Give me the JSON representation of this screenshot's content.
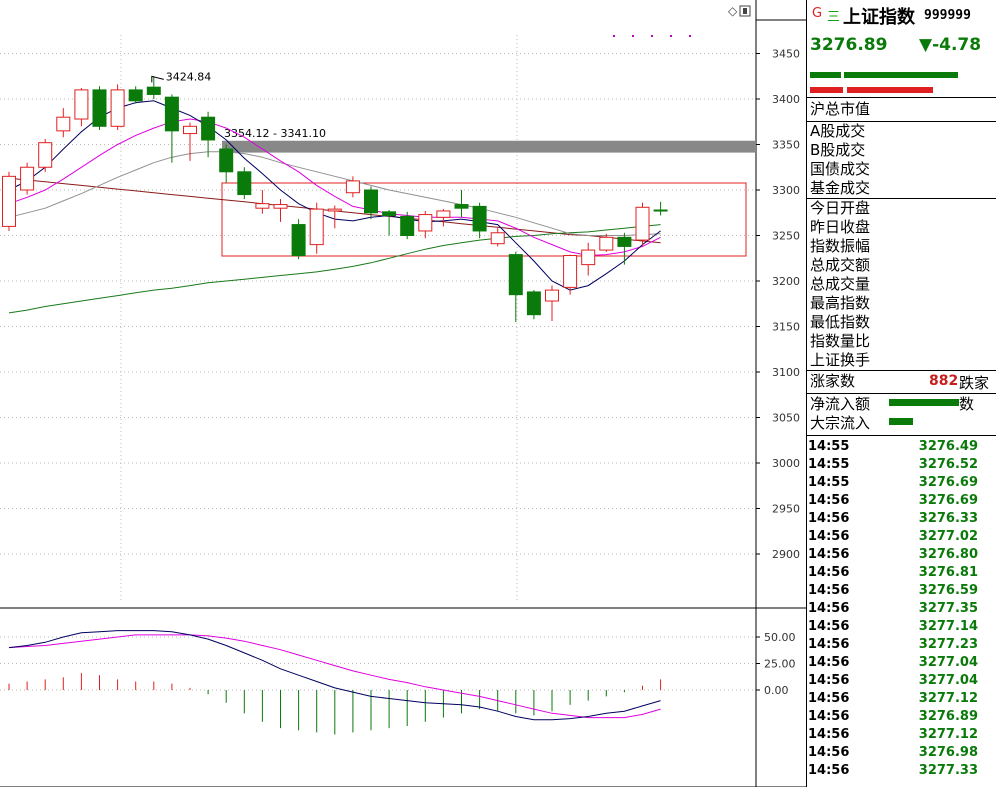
{
  "chart_data": {
    "type": "candlestick",
    "price_axis": {
      "ticks": [
        "3450",
        "3400",
        "3350",
        "3300",
        "3250",
        "3200",
        "3150",
        "3100",
        "3050",
        "3000",
        "2950",
        "2900"
      ],
      "min": 2870,
      "max": 3490
    },
    "annotations": {
      "high_label": "3424.84",
      "gap_label": "3354.12 - 3341.10"
    },
    "candles": [
      {
        "o": 3260,
        "c": 3315,
        "h": 3320,
        "l": 3255
      },
      {
        "o": 3300,
        "c": 3325,
        "h": 3330,
        "l": 3295
      },
      {
        "o": 3325,
        "c": 3352,
        "h": 3356,
        "l": 3320
      },
      {
        "o": 3365,
        "c": 3380,
        "h": 3390,
        "l": 3358
      },
      {
        "o": 3378,
        "c": 3410,
        "h": 3412,
        "l": 3370
      },
      {
        "o": 3410,
        "c": 3370,
        "h": 3414,
        "l": 3366
      },
      {
        "o": 3370,
        "c": 3410,
        "h": 3416,
        "l": 3366
      },
      {
        "o": 3410,
        "c": 3398,
        "h": 3414,
        "l": 3395
      },
      {
        "o": 3413,
        "c": 3405,
        "h": 3425,
        "l": 3400
      },
      {
        "o": 3402,
        "c": 3365,
        "h": 3405,
        "l": 3330
      },
      {
        "o": 3362,
        "c": 3370,
        "h": 3374,
        "l": 3332
      },
      {
        "o": 3380,
        "c": 3355,
        "h": 3386,
        "l": 3336
      },
      {
        "o": 3345,
        "c": 3320,
        "h": 3350,
        "l": 3308
      },
      {
        "o": 3320,
        "c": 3295,
        "h": 3325,
        "l": 3290
      },
      {
        "o": 3280,
        "c": 3285,
        "h": 3300,
        "l": 3274
      },
      {
        "o": 3280,
        "c": 3284,
        "h": 3290,
        "l": 3265
      },
      {
        "o": 3262,
        "c": 3228,
        "h": 3268,
        "l": 3224
      },
      {
        "o": 3240,
        "c": 3279,
        "h": 3286,
        "l": 3230
      },
      {
        "o": 3277,
        "c": 3279,
        "h": 3283,
        "l": 3258
      },
      {
        "o": 3297,
        "c": 3310,
        "h": 3315,
        "l": 3292
      },
      {
        "o": 3300,
        "c": 3275,
        "h": 3304,
        "l": 3268
      },
      {
        "o": 3276,
        "c": 3272,
        "h": 3278,
        "l": 3250
      },
      {
        "o": 3271,
        "c": 3250,
        "h": 3276,
        "l": 3246
      },
      {
        "o": 3255,
        "c": 3273,
        "h": 3277,
        "l": 3247
      },
      {
        "o": 3270,
        "c": 3277,
        "h": 3279,
        "l": 3260
      },
      {
        "o": 3284,
        "c": 3280,
        "h": 3300,
        "l": 3270
      },
      {
        "o": 3282,
        "c": 3255,
        "h": 3286,
        "l": 3247
      },
      {
        "o": 3241,
        "c": 3253,
        "h": 3258,
        "l": 3238
      },
      {
        "o": 3229,
        "c": 3185,
        "h": 3232,
        "l": 3155
      },
      {
        "o": 3188,
        "c": 3163,
        "h": 3190,
        "l": 3158
      },
      {
        "o": 3178,
        "c": 3190,
        "h": 3195,
        "l": 3156
      },
      {
        "o": 3193,
        "c": 3228,
        "h": 3229,
        "l": 3185
      },
      {
        "o": 3218,
        "c": 3234,
        "h": 3242,
        "l": 3206
      },
      {
        "o": 3234,
        "c": 3248,
        "h": 3252,
        "l": 3232
      },
      {
        "o": 3248,
        "c": 3238,
        "h": 3253,
        "l": 3218
      },
      {
        "o": 3245,
        "c": 3281,
        "h": 3286,
        "l": 3238
      },
      {
        "o": 3278,
        "c": 3277,
        "h": 3287,
        "l": 3272
      }
    ],
    "ma5": [
      3300,
      3310,
      3325,
      3345,
      3364,
      3380,
      3390,
      3396,
      3398,
      3390,
      3382,
      3370,
      3355,
      3335,
      3318,
      3300,
      3285,
      3275,
      3268,
      3266,
      3270,
      3272,
      3268,
      3265,
      3266,
      3268,
      3265,
      3262,
      3242,
      3222,
      3200,
      3190,
      3195,
      3208,
      3222,
      3240,
      3255
    ],
    "ma10": [
      3285,
      3292,
      3300,
      3312,
      3325,
      3338,
      3350,
      3360,
      3368,
      3375,
      3378,
      3375,
      3368,
      3358,
      3345,
      3332,
      3320,
      3305,
      3293,
      3282,
      3278,
      3274,
      3272,
      3270,
      3270,
      3270,
      3268,
      3266,
      3258,
      3248,
      3240,
      3232,
      3228,
      3229,
      3232,
      3238,
      3248
    ],
    "ma20": [
      3270,
      3275,
      3280,
      3288,
      3296,
      3305,
      3314,
      3322,
      3330,
      3336,
      3340,
      3342,
      3342,
      3340,
      3336,
      3330,
      3325,
      3320,
      3315,
      3310,
      3305,
      3300,
      3296,
      3292,
      3288,
      3284,
      3280,
      3275,
      3270,
      3264,
      3258,
      3252,
      3250,
      3250,
      3250,
      3251,
      3252
    ],
    "ma60": [
      3165,
      3168,
      3172,
      3175,
      3178,
      3181,
      3184,
      3187,
      3190,
      3192,
      3195,
      3198,
      3200,
      3202,
      3204,
      3206,
      3208,
      3210,
      3213,
      3216,
      3220,
      3225,
      3230,
      3235,
      3239,
      3242,
      3245,
      3247,
      3249,
      3250,
      3252,
      3253,
      3254,
      3256,
      3258,
      3260,
      3262
    ],
    "ma_long": [
      3313,
      3311,
      3309,
      3307,
      3305,
      3303,
      3301,
      3299,
      3297,
      3295,
      3293,
      3291,
      3289,
      3287,
      3285,
      3283,
      3281,
      3279,
      3277,
      3275,
      3273,
      3271,
      3269,
      3267,
      3265,
      3263,
      3261,
      3259,
      3257,
      3255,
      3253,
      3251,
      3250,
      3248,
      3246,
      3244,
      3242
    ],
    "macd_axis": {
      "ticks": [
        "50.00",
        "25.00",
        "0.00"
      ]
    },
    "macd_dif": [
      40,
      42,
      45,
      50,
      54,
      55,
      56,
      56,
      56,
      55,
      52,
      48,
      42,
      35,
      28,
      20,
      14,
      8,
      2,
      -2,
      -6,
      -8,
      -10,
      -12,
      -13,
      -14,
      -16,
      -20,
      -25,
      -28,
      -28,
      -27,
      -25,
      -22,
      -20,
      -15,
      -10
    ],
    "macd_dea": [
      40,
      41,
      42,
      44,
      46,
      48,
      50,
      52,
      52,
      52,
      52,
      51,
      49,
      46,
      42,
      38,
      33,
      28,
      23,
      18,
      14,
      10,
      7,
      3,
      0,
      -3,
      -6,
      -10,
      -14,
      -18,
      -22,
      -24,
      -26,
      -26,
      -26,
      -23,
      -18
    ],
    "macd_hist": [
      6,
      8,
      10,
      12,
      16,
      14,
      10,
      8,
      8,
      6,
      2,
      -4,
      -12,
      -22,
      -30,
      -36,
      -38,
      -40,
      -42,
      -40,
      -38,
      -36,
      -34,
      -30,
      -26,
      -22,
      -18,
      -20,
      -22,
      -24,
      -20,
      -14,
      -10,
      -6,
      -2,
      4,
      10
    ]
  },
  "side": {
    "g_icon": "G",
    "e_icon": "三",
    "name": "上证指数",
    "code": "999999",
    "price": "3276.89",
    "change": "▼-4.78",
    "labels1": [
      "沪总市值"
    ],
    "labels2": [
      "A股成交",
      "B股成交",
      "国债成交",
      "基金成交"
    ],
    "labels3": [
      "今日开盘",
      "昨日收盘",
      "指数振幅",
      "总成交额",
      "总成交量",
      "最高指数",
      "最低指数",
      "指数量比",
      "上证换手"
    ],
    "updown_label": "涨家数",
    "updown_value": "882",
    "down_label": "跌家数",
    "flow": [
      "净流入额",
      "大宗流入"
    ],
    "ticks": [
      {
        "t": "14:55",
        "v": "3276.49"
      },
      {
        "t": "14:55",
        "v": "3276.52"
      },
      {
        "t": "14:55",
        "v": "3276.69"
      },
      {
        "t": "14:56",
        "v": "3276.69"
      },
      {
        "t": "14:56",
        "v": "3276.33"
      },
      {
        "t": "14:56",
        "v": "3277.02"
      },
      {
        "t": "14:56",
        "v": "3276.80"
      },
      {
        "t": "14:56",
        "v": "3276.81"
      },
      {
        "t": "14:56",
        "v": "3276.59"
      },
      {
        "t": "14:56",
        "v": "3277.35"
      },
      {
        "t": "14:56",
        "v": "3277.14"
      },
      {
        "t": "14:56",
        "v": "3277.23"
      },
      {
        "t": "14:56",
        "v": "3277.04"
      },
      {
        "t": "14:56",
        "v": "3277.04"
      },
      {
        "t": "14:56",
        "v": "3277.12"
      },
      {
        "t": "14:56",
        "v": "3276.89"
      },
      {
        "t": "14:56",
        "v": "3277.12"
      },
      {
        "t": "14:56",
        "v": "3276.98"
      },
      {
        "t": "14:56",
        "v": "3277.33"
      }
    ]
  },
  "colors": {
    "up": "#e02020",
    "down": "#0a7a0a",
    "ma5": "#000060",
    "ma10": "#e000e0",
    "ma20": "#909090",
    "ma60": "#1a7a1a",
    "ma_long": "#8b1a1a"
  }
}
